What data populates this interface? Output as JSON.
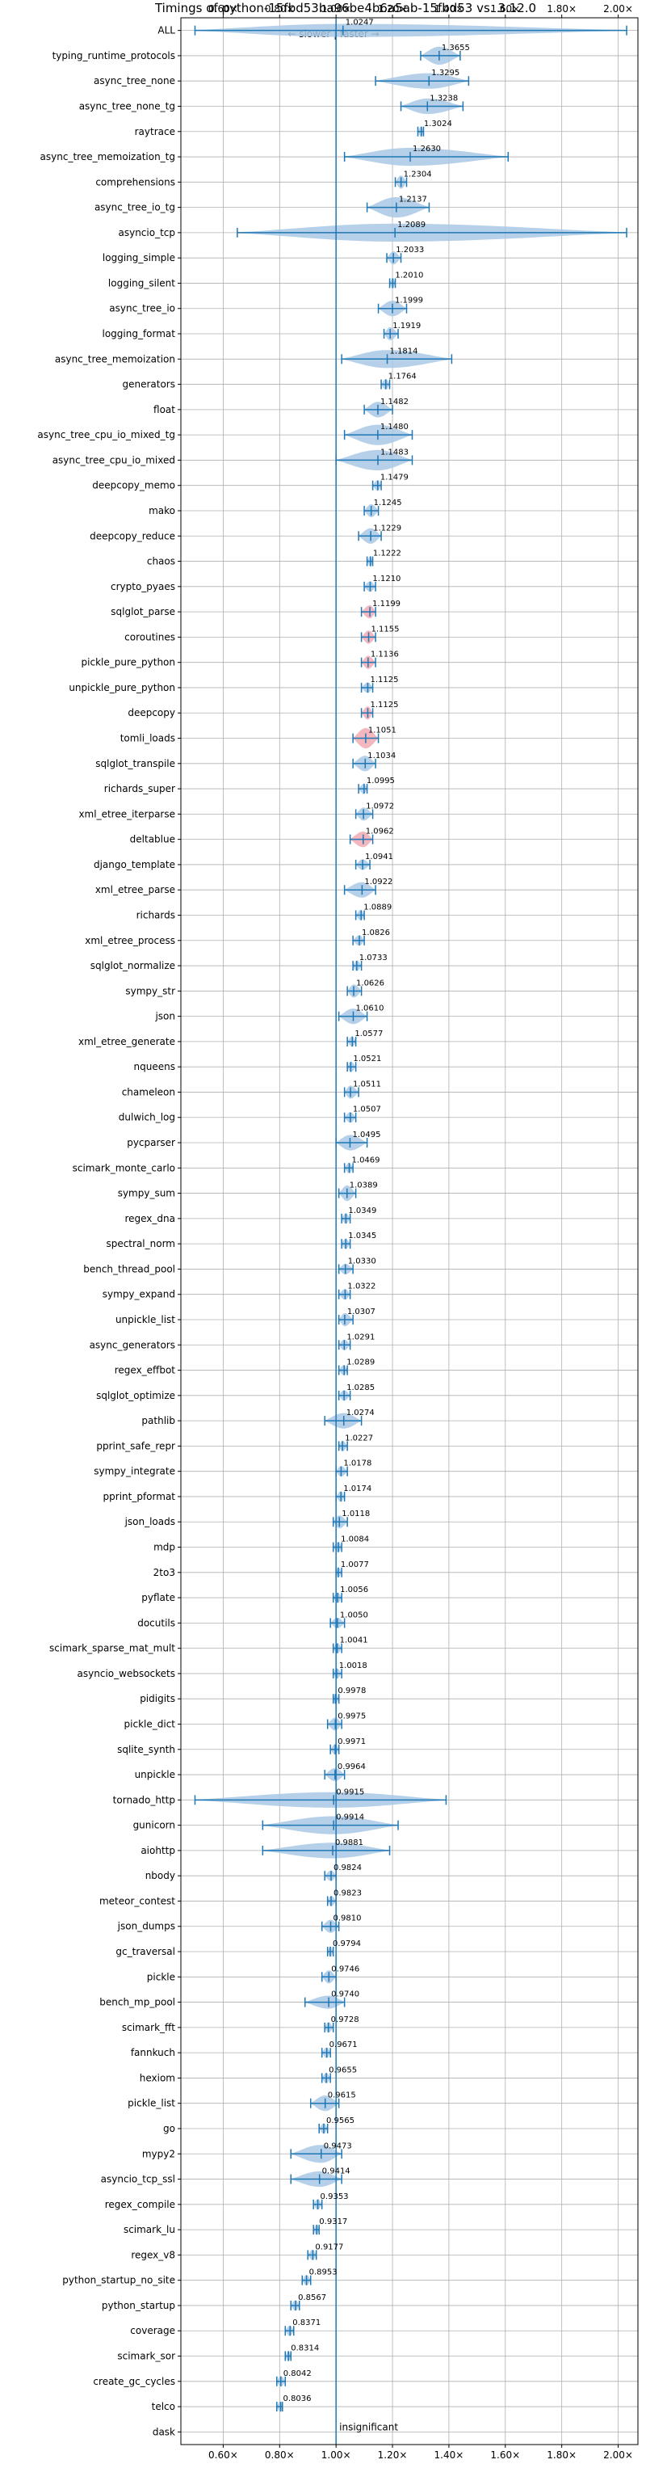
{
  "chart_data": {
    "type": "violin",
    "title": "Timings of python-15fbd53ba96be4b6a5ab-15fbd53 vs. 3.12.0",
    "direction_label": "← slower | faster →",
    "xlim": [
      0.45,
      2.07
    ],
    "x_ticks": [
      0.6,
      0.8,
      1.0,
      1.2,
      1.4,
      1.6,
      1.8,
      2.0
    ],
    "x_tick_labels": [
      "0.60×",
      "0.80×",
      "1.00×",
      "1.20×",
      "1.40×",
      "1.60×",
      "1.80×",
      "2.00×"
    ],
    "grid": true,
    "reference_line": 1.0,
    "insignificant_label": "insignificant",
    "colors": {
      "violin": "#a8c8e4",
      "violin_highlight": "#f2aab4",
      "marker": "#1f77b4",
      "reference": "#1f77b4",
      "grid": "#b0b0b0"
    },
    "benchmarks": [
      {
        "name": "ALL",
        "value": 1.0247,
        "label": "1.0247",
        "min": 0.5,
        "max": 2.03,
        "width": 0.5
      },
      {
        "name": "typing_runtime_protocols",
        "value": 1.3655,
        "label": "1.3655",
        "min": 1.3,
        "max": 1.44,
        "width": 0.7
      },
      {
        "name": "async_tree_none",
        "value": 1.3295,
        "label": "1.3295",
        "min": 1.14,
        "max": 1.47,
        "width": 0.6
      },
      {
        "name": "async_tree_none_tg",
        "value": 1.3238,
        "label": "1.3238",
        "min": 1.23,
        "max": 1.45,
        "width": 0.6
      },
      {
        "name": "raytrace",
        "value": 1.3024,
        "label": "1.3024",
        "min": 1.29,
        "max": 1.31,
        "width": 0.4
      },
      {
        "name": "async_tree_memoization_tg",
        "value": 1.263,
        "label": "1.2630",
        "min": 1.03,
        "max": 1.61,
        "width": 0.7
      },
      {
        "name": "comprehensions",
        "value": 1.2304,
        "label": "1.2304",
        "min": 1.21,
        "max": 1.25,
        "width": 0.5
      },
      {
        "name": "async_tree_io_tg",
        "value": 1.2137,
        "label": "1.2137",
        "min": 1.11,
        "max": 1.33,
        "width": 0.8
      },
      {
        "name": "asyncio_tcp",
        "value": 1.2089,
        "label": "1.2089",
        "min": 0.65,
        "max": 2.03,
        "width": 0.7
      },
      {
        "name": "logging_simple",
        "value": 1.2033,
        "label": "1.2033",
        "min": 1.18,
        "max": 1.23,
        "width": 0.5
      },
      {
        "name": "logging_silent",
        "value": 1.201,
        "label": "1.2010",
        "min": 1.19,
        "max": 1.21,
        "width": 0.4
      },
      {
        "name": "async_tree_io",
        "value": 1.1999,
        "label": "1.1999",
        "min": 1.15,
        "max": 1.25,
        "width": 0.6
      },
      {
        "name": "logging_format",
        "value": 1.1919,
        "label": "1.1919",
        "min": 1.17,
        "max": 1.22,
        "width": 0.5
      },
      {
        "name": "async_tree_memoization",
        "value": 1.1814,
        "label": "1.1814",
        "min": 1.02,
        "max": 1.41,
        "width": 0.7
      },
      {
        "name": "generators",
        "value": 1.1764,
        "label": "1.1764",
        "min": 1.16,
        "max": 1.19,
        "width": 0.4
      },
      {
        "name": "float",
        "value": 1.1482,
        "label": "1.1482",
        "min": 1.1,
        "max": 1.2,
        "width": 0.6
      },
      {
        "name": "async_tree_cpu_io_mixed_tg",
        "value": 1.148,
        "label": "1.1480",
        "min": 1.03,
        "max": 1.27,
        "width": 0.8
      },
      {
        "name": "async_tree_cpu_io_mixed",
        "value": 1.1483,
        "label": "1.1483",
        "min": 1.0,
        "max": 1.27,
        "width": 0.8
      },
      {
        "name": "deepcopy_memo",
        "value": 1.1479,
        "label": "1.1479",
        "min": 1.13,
        "max": 1.16,
        "width": 0.4
      },
      {
        "name": "mako",
        "value": 1.1245,
        "label": "1.1245",
        "min": 1.1,
        "max": 1.15,
        "width": 0.5
      },
      {
        "name": "deepcopy_reduce",
        "value": 1.1229,
        "label": "1.1229",
        "min": 1.08,
        "max": 1.16,
        "width": 0.6
      },
      {
        "name": "chaos",
        "value": 1.1222,
        "label": "1.1222",
        "min": 1.11,
        "max": 1.13,
        "width": 0.4
      },
      {
        "name": "crypto_pyaes",
        "value": 1.121,
        "label": "1.1210",
        "min": 1.1,
        "max": 1.14,
        "width": 0.4
      },
      {
        "name": "sqlglot_parse",
        "value": 1.1199,
        "label": "1.1199",
        "min": 1.09,
        "max": 1.14,
        "width": 0.5,
        "highlight": true
      },
      {
        "name": "coroutines",
        "value": 1.1155,
        "label": "1.1155",
        "min": 1.09,
        "max": 1.14,
        "width": 0.5,
        "highlight": true
      },
      {
        "name": "pickle_pure_python",
        "value": 1.1136,
        "label": "1.1136",
        "min": 1.09,
        "max": 1.14,
        "width": 0.5,
        "highlight": true
      },
      {
        "name": "unpickle_pure_python",
        "value": 1.1125,
        "label": "1.1125",
        "min": 1.09,
        "max": 1.13,
        "width": 0.4
      },
      {
        "name": "deepcopy",
        "value": 1.1125,
        "label": "1.1125",
        "min": 1.09,
        "max": 1.13,
        "width": 0.5,
        "highlight": true
      },
      {
        "name": "tomli_loads",
        "value": 1.1051,
        "label": "1.1051",
        "min": 1.06,
        "max": 1.15,
        "width": 0.8,
        "highlight": true
      },
      {
        "name": "sqlglot_transpile",
        "value": 1.1034,
        "label": "1.1034",
        "min": 1.06,
        "max": 1.14,
        "width": 0.6
      },
      {
        "name": "richards_super",
        "value": 1.0995,
        "label": "1.0995",
        "min": 1.08,
        "max": 1.11,
        "width": 0.4
      },
      {
        "name": "xml_etree_iterparse",
        "value": 1.0972,
        "label": "1.0972",
        "min": 1.07,
        "max": 1.13,
        "width": 0.5
      },
      {
        "name": "deltablue",
        "value": 1.0962,
        "label": "1.0962",
        "min": 1.05,
        "max": 1.13,
        "width": 0.6,
        "highlight": true
      },
      {
        "name": "django_template",
        "value": 1.0941,
        "label": "1.0941",
        "min": 1.07,
        "max": 1.12,
        "width": 0.4
      },
      {
        "name": "xml_etree_parse",
        "value": 1.0922,
        "label": "1.0922",
        "min": 1.03,
        "max": 1.14,
        "width": 0.6
      },
      {
        "name": "richards",
        "value": 1.0889,
        "label": "1.0889",
        "min": 1.07,
        "max": 1.1,
        "width": 0.4
      },
      {
        "name": "xml_etree_process",
        "value": 1.0826,
        "label": "1.0826",
        "min": 1.06,
        "max": 1.1,
        "width": 0.4
      },
      {
        "name": "sqlglot_normalize",
        "value": 1.0733,
        "label": "1.0733",
        "min": 1.06,
        "max": 1.09,
        "width": 0.4
      },
      {
        "name": "sympy_str",
        "value": 1.0626,
        "label": "1.0626",
        "min": 1.04,
        "max": 1.09,
        "width": 0.5
      },
      {
        "name": "json",
        "value": 1.061,
        "label": "1.0610",
        "min": 1.01,
        "max": 1.11,
        "width": 0.6
      },
      {
        "name": "xml_etree_generate",
        "value": 1.0577,
        "label": "1.0577",
        "min": 1.04,
        "max": 1.07,
        "width": 0.4
      },
      {
        "name": "nqueens",
        "value": 1.0521,
        "label": "1.0521",
        "min": 1.04,
        "max": 1.07,
        "width": 0.4
      },
      {
        "name": "chameleon",
        "value": 1.0511,
        "label": "1.0511",
        "min": 1.03,
        "max": 1.08,
        "width": 0.5
      },
      {
        "name": "dulwich_log",
        "value": 1.0507,
        "label": "1.0507",
        "min": 1.03,
        "max": 1.07,
        "width": 0.4
      },
      {
        "name": "pycparser",
        "value": 1.0495,
        "label": "1.0495",
        "min": 1.0,
        "max": 1.11,
        "width": 0.6
      },
      {
        "name": "scimark_monte_carlo",
        "value": 1.0469,
        "label": "1.0469",
        "min": 1.03,
        "max": 1.06,
        "width": 0.4
      },
      {
        "name": "sympy_sum",
        "value": 1.0389,
        "label": "1.0389",
        "min": 1.01,
        "max": 1.07,
        "width": 0.6
      },
      {
        "name": "regex_dna",
        "value": 1.0349,
        "label": "1.0349",
        "min": 1.02,
        "max": 1.05,
        "width": 0.4
      },
      {
        "name": "spectral_norm",
        "value": 1.0345,
        "label": "1.0345",
        "min": 1.02,
        "max": 1.05,
        "width": 0.4
      },
      {
        "name": "bench_thread_pool",
        "value": 1.033,
        "label": "1.0330",
        "min": 1.01,
        "max": 1.06,
        "width": 0.4
      },
      {
        "name": "sympy_expand",
        "value": 1.0322,
        "label": "1.0322",
        "min": 1.01,
        "max": 1.05,
        "width": 0.4
      },
      {
        "name": "unpickle_list",
        "value": 1.0307,
        "label": "1.0307",
        "min": 1.01,
        "max": 1.06,
        "width": 0.5
      },
      {
        "name": "async_generators",
        "value": 1.0291,
        "label": "1.0291",
        "min": 1.01,
        "max": 1.05,
        "width": 0.4
      },
      {
        "name": "regex_effbot",
        "value": 1.0289,
        "label": "1.0289",
        "min": 1.01,
        "max": 1.04,
        "width": 0.4
      },
      {
        "name": "sqlglot_optimize",
        "value": 1.0285,
        "label": "1.0285",
        "min": 1.01,
        "max": 1.05,
        "width": 0.4
      },
      {
        "name": "pathlib",
        "value": 1.0274,
        "label": "1.0274",
        "min": 0.96,
        "max": 1.09,
        "width": 0.6
      },
      {
        "name": "pprint_safe_repr",
        "value": 1.0227,
        "label": "1.0227",
        "min": 1.01,
        "max": 1.04,
        "width": 0.4
      },
      {
        "name": "sympy_integrate",
        "value": 1.0178,
        "label": "1.0178",
        "min": 1.0,
        "max": 1.04,
        "width": 0.4
      },
      {
        "name": "pprint_pformat",
        "value": 1.0174,
        "label": "1.0174",
        "min": 1.0,
        "max": 1.03,
        "width": 0.4
      },
      {
        "name": "json_loads",
        "value": 1.0118,
        "label": "1.0118",
        "min": 0.99,
        "max": 1.04,
        "width": 0.5
      },
      {
        "name": "mdp",
        "value": 1.0084,
        "label": "1.0084",
        "min": 0.99,
        "max": 1.02,
        "width": 0.4
      },
      {
        "name": "2to3",
        "value": 1.0077,
        "label": "1.0077",
        "min": 1.0,
        "max": 1.02,
        "width": 0.4
      },
      {
        "name": "pyflate",
        "value": 1.0056,
        "label": "1.0056",
        "min": 0.99,
        "max": 1.02,
        "width": 0.4
      },
      {
        "name": "docutils",
        "value": 1.005,
        "label": "1.0050",
        "min": 0.98,
        "max": 1.03,
        "width": 0.4
      },
      {
        "name": "scimark_sparse_mat_mult",
        "value": 1.0041,
        "label": "1.0041",
        "min": 0.99,
        "max": 1.02,
        "width": 0.4
      },
      {
        "name": "asyncio_websockets",
        "value": 1.0018,
        "label": "1.0018",
        "min": 0.99,
        "max": 1.02,
        "width": 0.4
      },
      {
        "name": "pidigits",
        "value": 0.9978,
        "label": "0.9978",
        "min": 0.99,
        "max": 1.01,
        "width": 0.4
      },
      {
        "name": "pickle_dict",
        "value": 0.9975,
        "label": "0.9975",
        "min": 0.97,
        "max": 1.02,
        "width": 0.5
      },
      {
        "name": "sqlite_synth",
        "value": 0.9971,
        "label": "0.9971",
        "min": 0.98,
        "max": 1.01,
        "width": 0.4
      },
      {
        "name": "unpickle",
        "value": 0.9964,
        "label": "0.9964",
        "min": 0.96,
        "max": 1.03,
        "width": 0.5
      },
      {
        "name": "tornado_http",
        "value": 0.9915,
        "label": "0.9915",
        "min": 0.5,
        "max": 1.39,
        "width": 0.6
      },
      {
        "name": "gunicorn",
        "value": 0.9914,
        "label": "0.9914",
        "min": 0.74,
        "max": 1.22,
        "width": 0.7
      },
      {
        "name": "aiohttp",
        "value": 0.9881,
        "label": "0.9881",
        "min": 0.74,
        "max": 1.19,
        "width": 0.6
      },
      {
        "name": "nbody",
        "value": 0.9824,
        "label": "0.9824",
        "min": 0.96,
        "max": 1.0,
        "width": 0.4
      },
      {
        "name": "meteor_contest",
        "value": 0.9823,
        "label": "0.9823",
        "min": 0.97,
        "max": 1.0,
        "width": 0.4
      },
      {
        "name": "json_dumps",
        "value": 0.981,
        "label": "0.9810",
        "min": 0.95,
        "max": 1.01,
        "width": 0.5
      },
      {
        "name": "gc_traversal",
        "value": 0.9794,
        "label": "0.9794",
        "min": 0.97,
        "max": 0.99,
        "width": 0.4
      },
      {
        "name": "pickle",
        "value": 0.9746,
        "label": "0.9746",
        "min": 0.95,
        "max": 1.0,
        "width": 0.5
      },
      {
        "name": "bench_mp_pool",
        "value": 0.974,
        "label": "0.9740",
        "min": 0.89,
        "max": 1.03,
        "width": 0.5
      },
      {
        "name": "scimark_fft",
        "value": 0.9728,
        "label": "0.9728",
        "min": 0.96,
        "max": 0.99,
        "width": 0.4
      },
      {
        "name": "fannkuch",
        "value": 0.9671,
        "label": "0.9671",
        "min": 0.95,
        "max": 0.98,
        "width": 0.4
      },
      {
        "name": "hexiom",
        "value": 0.9655,
        "label": "0.9655",
        "min": 0.95,
        "max": 0.98,
        "width": 0.4
      },
      {
        "name": "pickle_list",
        "value": 0.9615,
        "label": "0.9615",
        "min": 0.91,
        "max": 1.01,
        "width": 0.6
      },
      {
        "name": "go",
        "value": 0.9565,
        "label": "0.9565",
        "min": 0.94,
        "max": 0.97,
        "width": 0.4
      },
      {
        "name": "mypy2",
        "value": 0.9473,
        "label": "0.9473",
        "min": 0.84,
        "max": 1.02,
        "width": 0.7
      },
      {
        "name": "asyncio_tcp_ssl",
        "value": 0.9414,
        "label": "0.9414",
        "min": 0.84,
        "max": 1.02,
        "width": 0.6
      },
      {
        "name": "regex_compile",
        "value": 0.9353,
        "label": "0.9353",
        "min": 0.92,
        "max": 0.95,
        "width": 0.4
      },
      {
        "name": "scimark_lu",
        "value": 0.9317,
        "label": "0.9317",
        "min": 0.92,
        "max": 0.94,
        "width": 0.4
      },
      {
        "name": "regex_v8",
        "value": 0.9177,
        "label": "0.9177",
        "min": 0.9,
        "max": 0.93,
        "width": 0.4
      },
      {
        "name": "python_startup_no_site",
        "value": 0.8953,
        "label": "0.8953",
        "min": 0.88,
        "max": 0.91,
        "width": 0.4
      },
      {
        "name": "python_startup",
        "value": 0.8567,
        "label": "0.8567",
        "min": 0.84,
        "max": 0.87,
        "width": 0.4
      },
      {
        "name": "coverage",
        "value": 0.8371,
        "label": "0.8371",
        "min": 0.82,
        "max": 0.85,
        "width": 0.4
      },
      {
        "name": "scimark_sor",
        "value": 0.8314,
        "label": "0.8314",
        "min": 0.82,
        "max": 0.84,
        "width": 0.4
      },
      {
        "name": "create_gc_cycles",
        "value": 0.8042,
        "label": "0.8042",
        "min": 0.79,
        "max": 0.82,
        "width": 0.4
      },
      {
        "name": "telco",
        "value": 0.8036,
        "label": "0.8036",
        "min": 0.79,
        "max": 0.81,
        "width": 0.4
      },
      {
        "name": "dask",
        "value": null,
        "label": "",
        "insignificant": true
      }
    ]
  }
}
